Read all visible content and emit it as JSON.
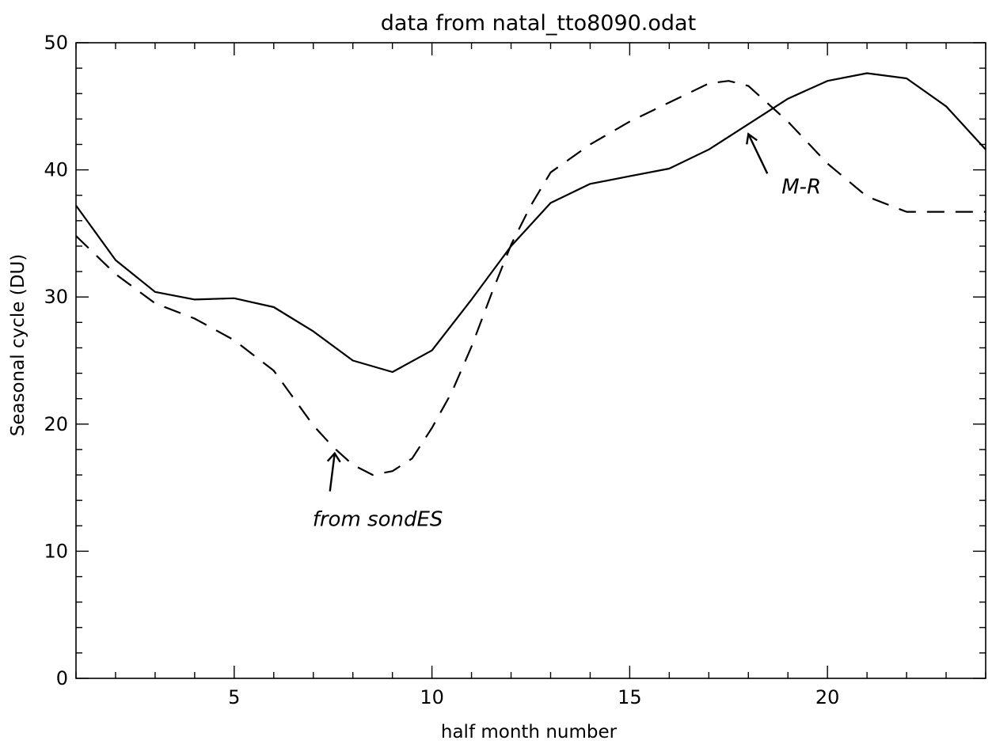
{
  "chart_data": {
    "type": "line",
    "title": "data from natal_tto8090.odat",
    "xlabel": "half month number",
    "ylabel": "Seasonal cycle (DU)",
    "xlim": [
      1,
      24
    ],
    "ylim": [
      0,
      50
    ],
    "x_ticks": [
      5,
      10,
      15,
      20
    ],
    "y_ticks": [
      0,
      10,
      20,
      30,
      40,
      50
    ],
    "grid": false,
    "series": [
      {
        "name": "M-R",
        "style": "solid",
        "x": [
          1,
          2,
          3,
          4,
          5,
          6,
          7,
          8,
          9,
          10,
          11,
          12,
          13,
          14,
          15,
          16,
          17,
          18,
          19,
          20,
          21,
          22,
          23,
          24
        ],
        "values": [
          37.2,
          32.9,
          30.4,
          29.8,
          29.9,
          29.2,
          27.3,
          25.0,
          24.1,
          25.8,
          29.8,
          34.0,
          37.4,
          38.9,
          39.5,
          40.1,
          41.6,
          43.6,
          45.6,
          47.0,
          47.6,
          47.2,
          45.0,
          41.6
        ]
      },
      {
        "name": "from sondes",
        "style": "dashed",
        "x": [
          1,
          2,
          3,
          4,
          5,
          6,
          7,
          7.5,
          8,
          8.5,
          9,
          9.5,
          10,
          10.5,
          11,
          11.5,
          12,
          12.5,
          13,
          14,
          15,
          16,
          17,
          17.5,
          18,
          19,
          20,
          21,
          22,
          23,
          24
        ],
        "values": [
          34.8,
          31.8,
          29.5,
          28.3,
          26.6,
          24.2,
          19.9,
          18.2,
          16.8,
          16.0,
          16.3,
          17.3,
          19.7,
          22.5,
          26.1,
          30.2,
          34.1,
          37.2,
          39.8,
          42.0,
          43.8,
          45.3,
          46.8,
          47.0,
          46.6,
          43.8,
          40.5,
          37.9,
          36.7,
          36.7,
          36.7
        ]
      }
    ],
    "annotations": [
      {
        "text": "from sondES",
        "target_x": 7.5,
        "target_y": 18.2
      },
      {
        "text": "M-R",
        "target_x": 18.0,
        "target_y": 41.2
      }
    ]
  }
}
